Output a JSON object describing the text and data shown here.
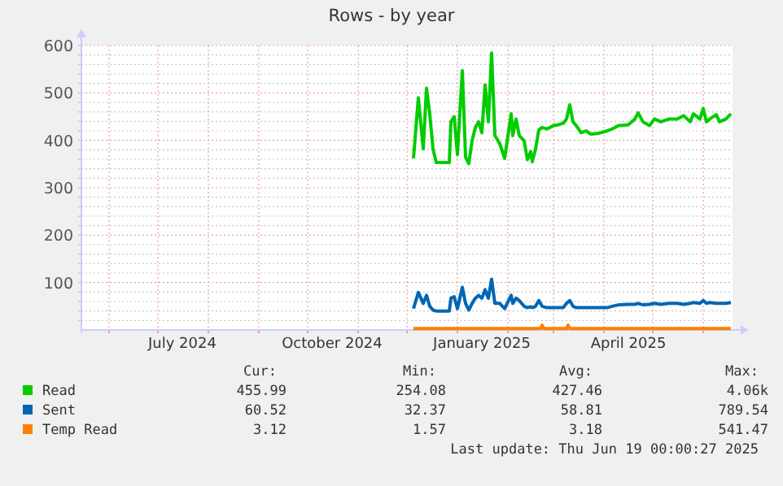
{
  "chart_data": {
    "type": "line",
    "title": "Rows - by year",
    "xlim": [
      "2024-05-15",
      "2025-06-19"
    ],
    "xticks": [
      {
        "value": "2024-06-01",
        "label": null
      },
      {
        "value": "2024-07-01",
        "label": null
      },
      {
        "value": "2024-07-16",
        "label": "July 2024"
      },
      {
        "value": "2024-08-01",
        "label": null
      },
      {
        "value": "2024-09-01",
        "label": null
      },
      {
        "value": "2024-10-01",
        "label": null
      },
      {
        "value": "2024-10-16",
        "label": "October 2024"
      },
      {
        "value": "2024-11-01",
        "label": null
      },
      {
        "value": "2024-12-01",
        "label": null
      },
      {
        "value": "2025-01-01",
        "label": null
      },
      {
        "value": "2025-01-16",
        "label": "January 2025"
      },
      {
        "value": "2025-02-01",
        "label": null
      },
      {
        "value": "2025-03-01",
        "label": null
      },
      {
        "value": "2025-04-01",
        "label": null
      },
      {
        "value": "2025-04-16",
        "label": "April 2025"
      },
      {
        "value": "2025-05-01",
        "label": null
      },
      {
        "value": "2025-06-01",
        "label": null
      }
    ],
    "ylim": [
      0,
      600
    ],
    "yticks": [
      {
        "value": 20,
        "label": null
      },
      {
        "value": 40,
        "label": null
      },
      {
        "value": 60,
        "label": null
      },
      {
        "value": 80,
        "label": null
      },
      100,
      {
        "value": 120,
        "label": null
      },
      {
        "value": 140,
        "label": null
      },
      {
        "value": 160,
        "label": null
      },
      {
        "value": 180,
        "label": null
      },
      200,
      {
        "value": 220,
        "label": null
      },
      {
        "value": 240,
        "label": null
      },
      {
        "value": 260,
        "label": null
      },
      {
        "value": 280,
        "label": null
      },
      300,
      {
        "value": 320,
        "label": null
      },
      {
        "value": 340,
        "label": null
      },
      {
        "value": 360,
        "label": null
      },
      {
        "value": 380,
        "label": null
      },
      400,
      {
        "value": 420,
        "label": null
      },
      {
        "value": 440,
        "label": null
      },
      {
        "value": 460,
        "label": null
      },
      {
        "value": 480,
        "label": null
      },
      500,
      {
        "value": 520,
        "label": null
      },
      {
        "value": 540,
        "label": null
      },
      {
        "value": 560,
        "label": null
      },
      {
        "value": 580,
        "label": null
      },
      600
    ],
    "grid": true,
    "legend": "bottom",
    "marker": "none",
    "line_style": "solid",
    "x": [
      "2024-12-05",
      "2024-12-08",
      "2024-12-11",
      "2024-12-13",
      "2024-12-15",
      "2024-12-17",
      "2024-12-19",
      "2024-12-27",
      "2024-12-28",
      "2024-12-30",
      "2025-01-01",
      "2025-01-04",
      "2025-01-06",
      "2025-01-08",
      "2025-01-10",
      "2025-01-12",
      "2025-01-14",
      "2025-01-16",
      "2025-01-18",
      "2025-01-20",
      "2025-01-22",
      "2025-01-24",
      "2025-01-27",
      "2025-01-30",
      "2025-02-03",
      "2025-02-04",
      "2025-02-06",
      "2025-02-08",
      "2025-02-11",
      "2025-02-13",
      "2025-02-15",
      "2025-02-16",
      "2025-02-18",
      "2025-02-20",
      "2025-02-22",
      "2025-02-25",
      "2025-03-01",
      "2025-03-04",
      "2025-03-07",
      "2025-03-09",
      "2025-03-11",
      "2025-03-13",
      "2025-03-15",
      "2025-03-18",
      "2025-03-21",
      "2025-03-24",
      "2025-03-29",
      "2025-04-03",
      "2025-04-06",
      "2025-04-10",
      "2025-04-16",
      "2025-04-20",
      "2025-04-22",
      "2025-04-25",
      "2025-04-29",
      "2025-05-02",
      "2025-05-06",
      "2025-05-11",
      "2025-05-16",
      "2025-05-20",
      "2025-05-24",
      "2025-05-26",
      "2025-05-30",
      "2025-06-01",
      "2025-06-03",
      "2025-06-05",
      "2025-06-09",
      "2025-06-11",
      "2025-06-15",
      "2025-06-18"
    ],
    "series": [
      {
        "name": "Read",
        "color": "#00cc00",
        "values": [
          362,
          490,
          382,
          510,
          456,
          382,
          353,
          353,
          439,
          450,
          370,
          547,
          365,
          351,
          399,
          427,
          439,
          416,
          517,
          439,
          584,
          410,
          393,
          362,
          456,
          410,
          445,
          410,
          399,
          359,
          376,
          355,
          382,
          422,
          427,
          424,
          431,
          433,
          436,
          445,
          475,
          439,
          431,
          416,
          420,
          413,
          415,
          420,
          424,
          431,
          433,
          445,
          458,
          439,
          431,
          445,
          439,
          445,
          445,
          452,
          439,
          456,
          445,
          467,
          439,
          445,
          454,
          439,
          445,
          456
        ]
      },
      {
        "name": "Sent",
        "color": "#0066b3",
        "values": [
          45,
          79,
          56,
          73,
          50,
          42,
          40,
          40,
          67,
          70,
          45,
          90,
          56,
          42,
          56,
          67,
          73,
          67,
          85,
          67,
          107,
          56,
          56,
          45,
          73,
          56,
          67,
          62,
          50,
          47,
          49,
          47,
          50,
          62,
          50,
          47,
          47,
          47,
          47,
          56,
          62,
          50,
          47,
          47,
          47,
          47,
          47,
          47,
          50,
          53,
          54,
          54,
          56,
          53,
          54,
          56,
          54,
          56,
          56,
          54,
          56,
          58,
          56,
          62,
          56,
          58,
          56,
          56,
          56,
          58
        ]
      },
      {
        "name": "Temp Read",
        "color": "#ff8000",
        "x": [
          "2024-12-05",
          "2025-02-21",
          "2025-02-22",
          "2025-02-23",
          "2025-03-09",
          "2025-03-10",
          "2025-03-11",
          "2025-06-18"
        ],
        "values": [
          3,
          3,
          10,
          3,
          3,
          10,
          3,
          3
        ]
      }
    ],
    "annotations": [
      "Cur:",
      "Min:",
      "Avg:",
      "Max:",
      "455.99",
      "254.08",
      "427.46",
      "4.06k",
      "60.52",
      "32.37",
      "58.81",
      "789.54",
      "3.12",
      "1.57",
      "3.18",
      "541.47",
      "Last update: Thu Jun 19 00:00:27 2025"
    ]
  }
}
